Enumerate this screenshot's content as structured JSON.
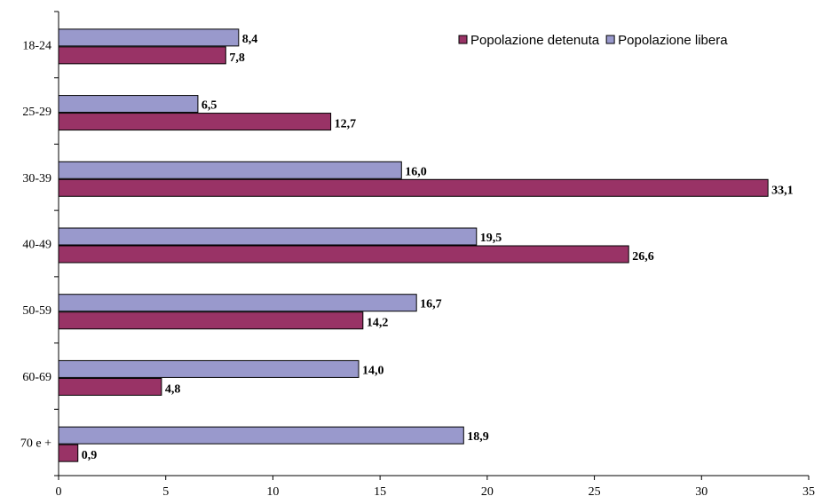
{
  "chart_data": {
    "type": "bar",
    "orientation": "horizontal",
    "categories": [
      "18-24",
      "25-29",
      "30-39",
      "40-49",
      "50-59",
      "60-69",
      "70 e +"
    ],
    "series": [
      {
        "name": "Popolazione libera",
        "color": "#9999cc",
        "values": [
          8.4,
          6.5,
          16.0,
          19.5,
          16.7,
          14.0,
          18.9
        ],
        "labels": [
          "8,4",
          "6,5",
          "16,0",
          "19,5",
          "16,7",
          "14,0",
          "18,9"
        ]
      },
      {
        "name": "Popolazione detenuta",
        "color": "#993366",
        "values": [
          7.8,
          12.7,
          33.1,
          26.6,
          14.2,
          4.8,
          0.9
        ],
        "labels": [
          "7,8",
          "12,7",
          "33,1",
          "26,6",
          "14,2",
          "4,8",
          "0,9"
        ]
      }
    ],
    "xlim": [
      0,
      35
    ],
    "xticks": [
      0,
      5,
      10,
      15,
      20,
      25,
      30,
      35
    ],
    "legend": {
      "position": "top-right",
      "order": [
        "Popolazione detenuta",
        "Popolazione libera"
      ]
    },
    "grid": false,
    "title": "",
    "xlabel": "",
    "ylabel": ""
  }
}
